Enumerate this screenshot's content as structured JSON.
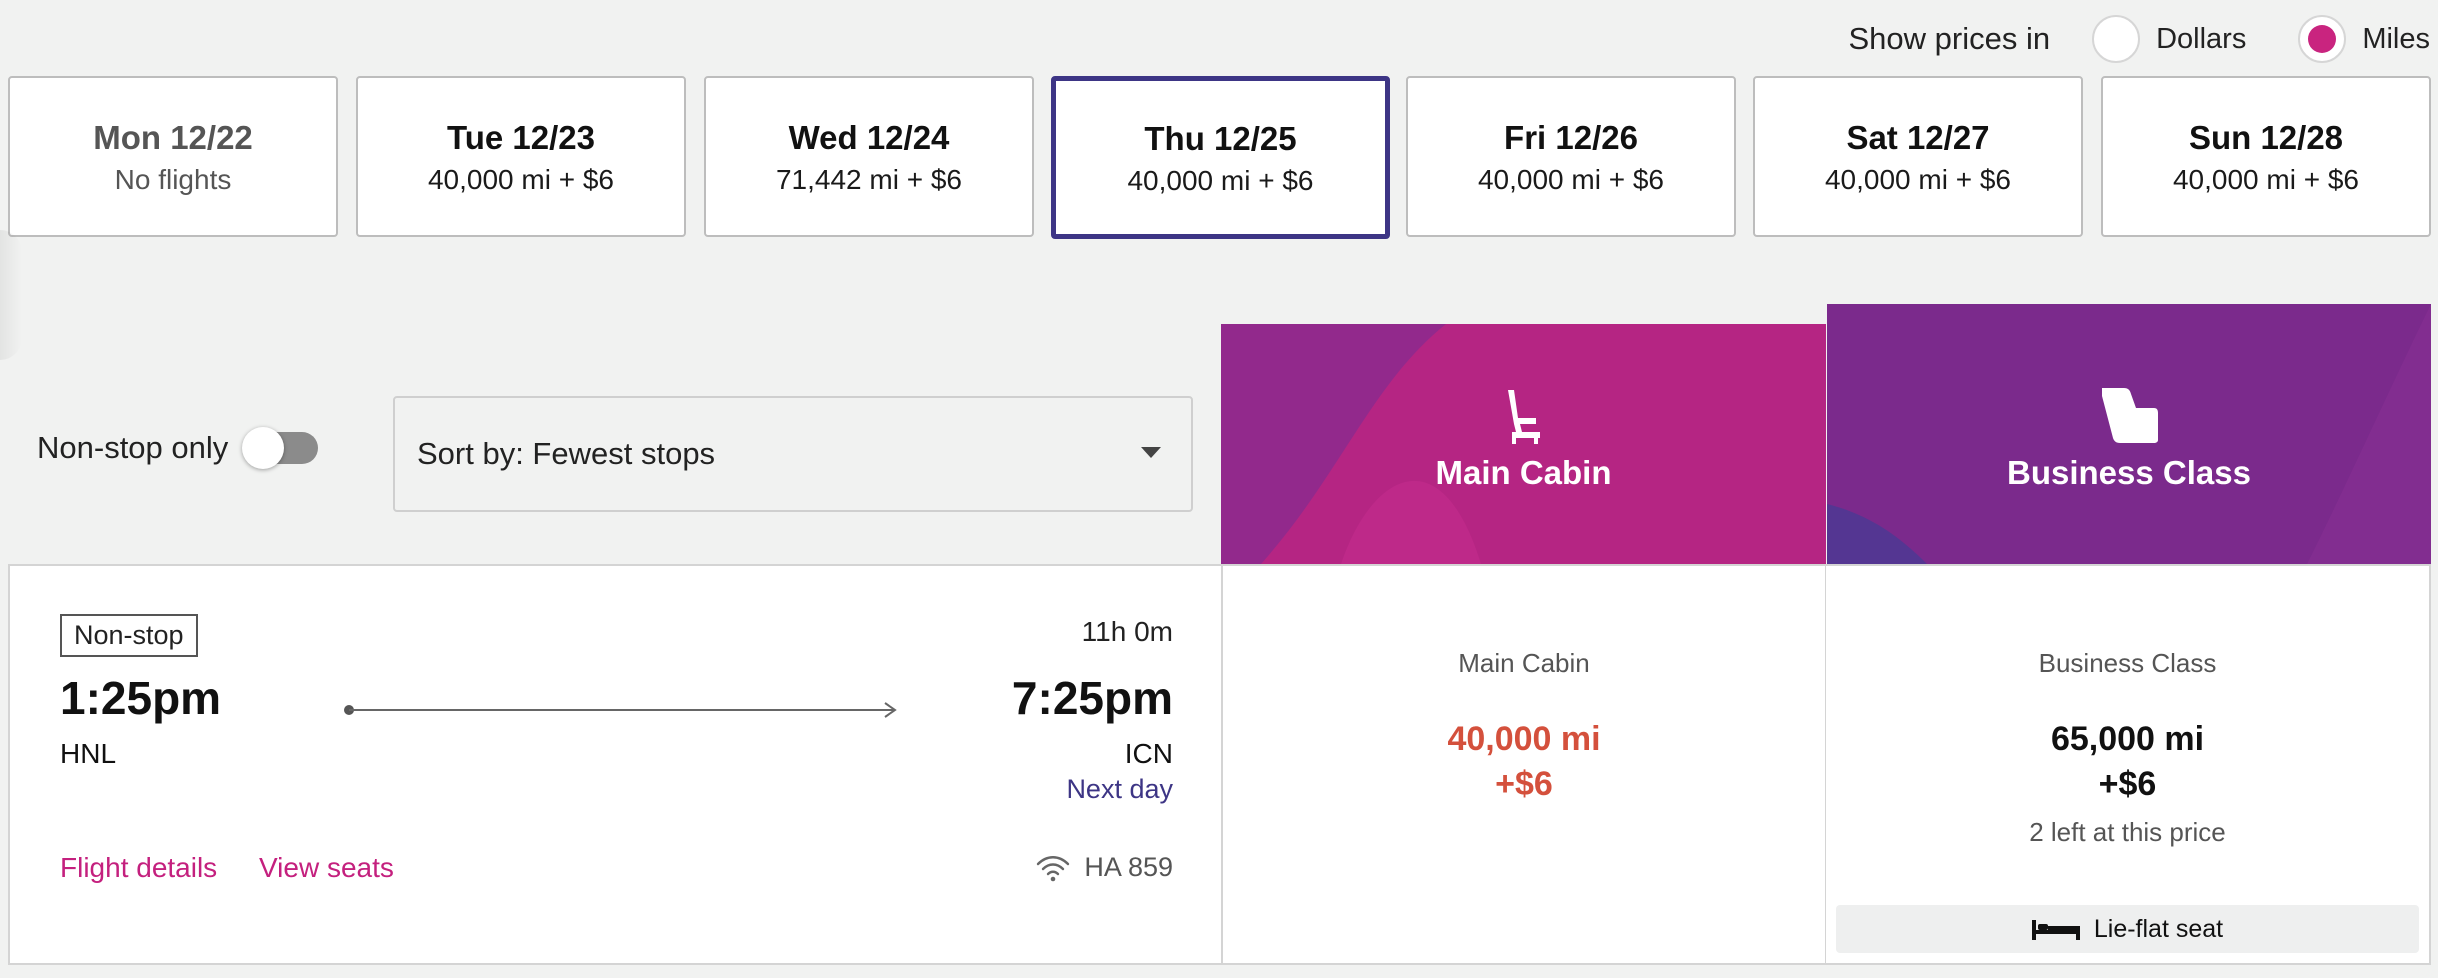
{
  "price_toggle": {
    "label": "Show prices in",
    "options": [
      {
        "label": "Dollars",
        "selected": false
      },
      {
        "label": "Miles",
        "selected": true
      }
    ]
  },
  "dates": [
    {
      "day": "Mon 12/22",
      "price": "No flights",
      "state": "disabled"
    },
    {
      "day": "Tue 12/23",
      "price": "40,000 mi + $6",
      "state": "normal"
    },
    {
      "day": "Wed 12/24",
      "price": "71,442 mi + $6",
      "state": "normal"
    },
    {
      "day": "Thu 12/25",
      "price": "40,000 mi + $6",
      "state": "selected"
    },
    {
      "day": "Fri 12/26",
      "price": "40,000 mi + $6",
      "state": "normal"
    },
    {
      "day": "Sat 12/27",
      "price": "40,000 mi + $6",
      "state": "normal"
    },
    {
      "day": "Sun 12/28",
      "price": "40,000 mi + $6",
      "state": "normal"
    }
  ],
  "filters": {
    "nonstop_label": "Non-stop only",
    "nonstop_enabled": false,
    "sort_label": "Sort by: Fewest stops"
  },
  "cabins": {
    "main": {
      "name": "Main Cabin",
      "icon": "seat-icon",
      "color": "#b52583"
    },
    "business": {
      "name": "Business Class",
      "icon": "business-seat-icon",
      "color": "#7b2a8c"
    }
  },
  "flight": {
    "stops_badge": "Non-stop",
    "duration": "11h 0m",
    "depart_time": "1:25pm",
    "depart_airport": "HNL",
    "arrive_time": "7:25pm",
    "arrive_airport": "ICN",
    "arrive_note": "Next day",
    "details_link": "Flight details",
    "seats_link": "View seats",
    "flight_number": "HA 859",
    "amenity_icon": "wifi-icon"
  },
  "fares": {
    "main": {
      "cabin": "Main Cabin",
      "miles": "40,000 mi",
      "fee": "+$6",
      "color": "#d4503c"
    },
    "business": {
      "cabin": "Business Class",
      "miles": "65,000 mi",
      "fee": "+$6",
      "availability": "2 left at this price",
      "feature": "Lie-flat seat",
      "feature_icon": "lie-flat-bed-icon"
    }
  }
}
